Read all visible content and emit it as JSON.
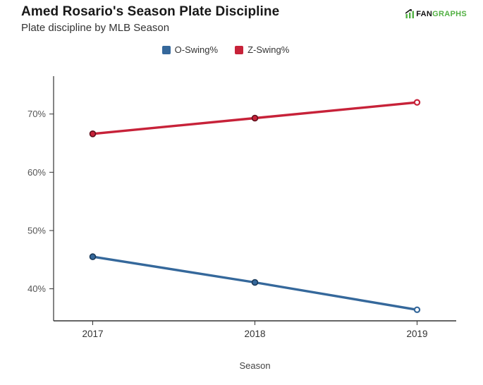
{
  "header": {
    "title": "Amed Rosario's Season Plate Discipline",
    "subtitle": "Plate discipline by MLB Season"
  },
  "logo": {
    "fan": "FAN",
    "graphs": "GRAPHS",
    "green": "#52b043",
    "black": "#111111"
  },
  "legend": {
    "items": [
      {
        "label": "O-Swing%",
        "color": "#35689b"
      },
      {
        "label": "Z-Swing%",
        "color": "#c72239"
      }
    ]
  },
  "chart_data": {
    "type": "line",
    "title": "Amed Rosario's Season Plate Discipline",
    "subtitle": "Plate discipline by MLB Season",
    "categories": [
      "2017",
      "2018",
      "2019"
    ],
    "series": [
      {
        "name": "O-Swing%",
        "color": "#35689b",
        "marker_outline": "#1c3a59",
        "values": [
          45.5,
          41.1,
          36.4
        ]
      },
      {
        "name": "Z-Swing%",
        "color": "#c72239",
        "marker_outline": "#5e0f1c",
        "values": [
          66.6,
          69.3,
          72.0
        ]
      }
    ],
    "xlabel": "Season",
    "ylabel": "",
    "ylim": [
      34.5,
      76.5
    ],
    "yticks": [
      40,
      50,
      60,
      70
    ],
    "ytick_suffix": "%",
    "grid": false,
    "legend_position": "top",
    "last_point_open": true,
    "axis_color": "#333333",
    "y_tick_label_color": "#555555",
    "x_tick_label_color": "#333333",
    "axis_title_color": "#444444"
  }
}
